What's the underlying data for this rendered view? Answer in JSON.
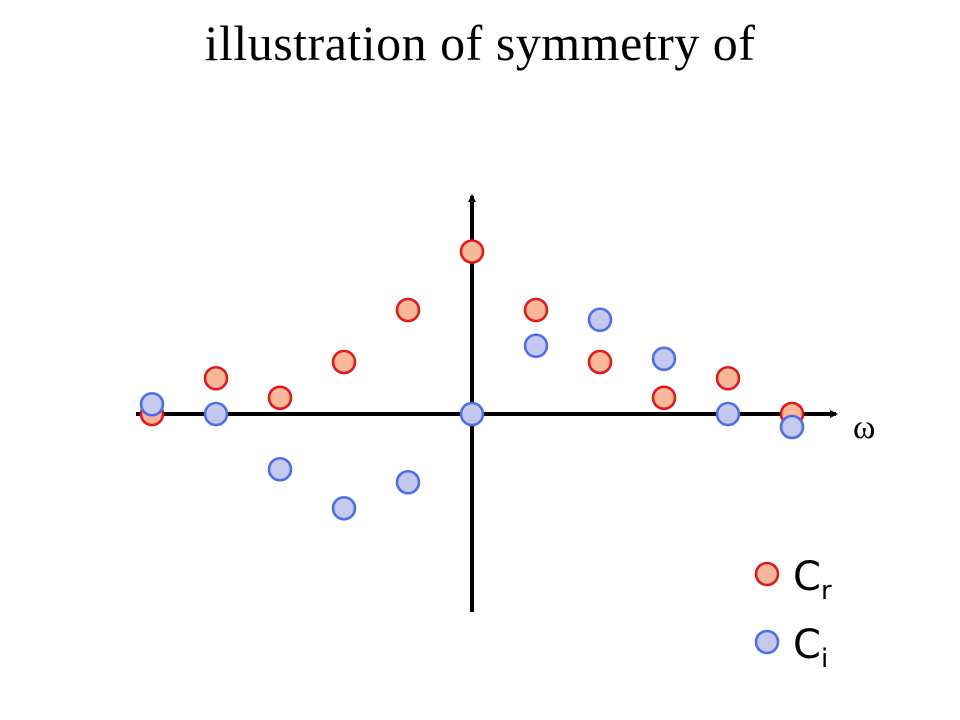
{
  "title": "illustration of symmetry of",
  "chart_data": {
    "type": "scatter",
    "title": "illustration of symmetry of",
    "xlabel": "ω",
    "ylabel": "",
    "xlim": [
      -5.3,
      5.3
    ],
    "ylim": [
      -3.1,
      3.2
    ],
    "grid": false,
    "legend_position": "bottom-right",
    "series": [
      {
        "name": "C",
        "subscript": "r",
        "color_fill": "#f6b89b",
        "color_edge": "#e0191a",
        "x": [
          -5,
          -4,
          -3,
          -2,
          -1,
          0,
          1,
          2,
          3,
          4,
          5
        ],
        "y": [
          0,
          0.55,
          0.25,
          0.8,
          1.6,
          2.5,
          1.6,
          0.8,
          0.25,
          0.55,
          0
        ]
      },
      {
        "name": "C",
        "subscript": "i",
        "color_fill": "#c5c8ef",
        "color_edge": "#4d6ee6",
        "x": [
          -5,
          -4,
          -3,
          -2,
          -1,
          0,
          1,
          2,
          3,
          4,
          5
        ],
        "y": [
          0.15,
          0,
          -0.85,
          -1.45,
          -1.05,
          0,
          1.05,
          1.45,
          0.85,
          0,
          -0.2
        ]
      }
    ]
  }
}
